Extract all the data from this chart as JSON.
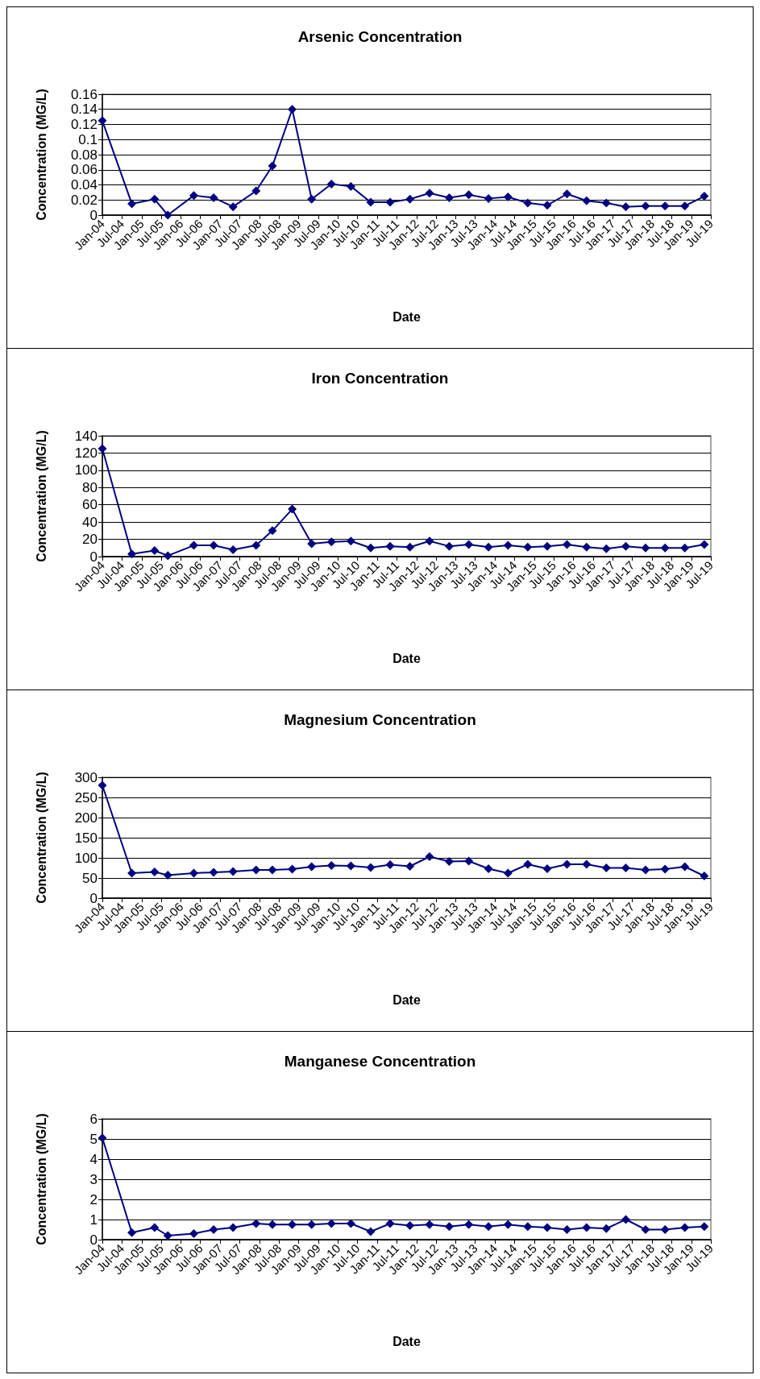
{
  "chart_data": [
    {
      "type": "line",
      "title": "Arsenic Concentration",
      "xlabel": "Date",
      "ylabel": "Concentration (MG/L)",
      "marker": "diamond",
      "line_style": "solid",
      "grid": "y",
      "x": [
        "2004-01",
        "2004-10",
        "2005-05",
        "2005-09",
        "2006-05",
        "2006-11",
        "2007-05",
        "2007-12",
        "2008-05",
        "2008-11",
        "2009-05",
        "2009-11",
        "2010-05",
        "2010-11",
        "2011-05",
        "2011-11",
        "2012-05",
        "2012-11",
        "2013-05",
        "2013-11",
        "2014-05",
        "2014-11",
        "2015-05",
        "2015-11",
        "2016-05",
        "2016-11",
        "2017-05",
        "2017-11",
        "2018-05",
        "2018-11",
        "2019-05"
      ],
      "series": [
        {
          "color": "#000080",
          "values": [
            0.125,
            0.015,
            0.021,
            0.0,
            0.026,
            0.023,
            0.011,
            0.032,
            0.065,
            0.14,
            0.021,
            0.041,
            0.038,
            0.017,
            0.017,
            0.021,
            0.029,
            0.023,
            0.027,
            0.022,
            0.024,
            0.016,
            0.013,
            0.028,
            0.019,
            0.016,
            0.011,
            0.012,
            0.012,
            0.012,
            0.025
          ]
        }
      ],
      "ylim": [
        0,
        0.16
      ],
      "yticks": [
        0,
        0.02,
        0.04,
        0.06,
        0.08,
        0.1,
        0.12,
        0.14,
        0.16
      ],
      "xlim": [
        "2004-01",
        "2019-07"
      ],
      "xticks": [
        {
          "value": "2004-01",
          "label": "Jan-04"
        },
        {
          "value": "2004-07",
          "label": "Jul-04"
        },
        {
          "value": "2005-01",
          "label": "Jan-05"
        },
        {
          "value": "2005-07",
          "label": "Jul-05"
        },
        {
          "value": "2006-01",
          "label": "Jan-06"
        },
        {
          "value": "2006-07",
          "label": "Jul-06"
        },
        {
          "value": "2007-01",
          "label": "Jan-07"
        },
        {
          "value": "2007-07",
          "label": "Jul-07"
        },
        {
          "value": "2008-01",
          "label": "Jan-08"
        },
        {
          "value": "2008-07",
          "label": "Jul-08"
        },
        {
          "value": "2009-01",
          "label": "Jan-09"
        },
        {
          "value": "2009-07",
          "label": "Jul-09"
        },
        {
          "value": "2010-01",
          "label": "Jan-10"
        },
        {
          "value": "2010-07",
          "label": "Jul-10"
        },
        {
          "value": "2011-01",
          "label": "Jan-11"
        },
        {
          "value": "2011-07",
          "label": "Jul-11"
        },
        {
          "value": "2012-01",
          "label": "Jan-12"
        },
        {
          "value": "2012-07",
          "label": "Jul-12"
        },
        {
          "value": "2013-01",
          "label": "Jan-13"
        },
        {
          "value": "2013-07",
          "label": "Jul-13"
        },
        {
          "value": "2014-01",
          "label": "Jan-14"
        },
        {
          "value": "2014-07",
          "label": "Jul-14"
        },
        {
          "value": "2015-01",
          "label": "Jan-15"
        },
        {
          "value": "2015-07",
          "label": "Jul-15"
        },
        {
          "value": "2016-01",
          "label": "Jan-16"
        },
        {
          "value": "2016-07",
          "label": "Jul-16"
        },
        {
          "value": "2017-01",
          "label": "Jan-17"
        },
        {
          "value": "2017-07",
          "label": "Jul-17"
        },
        {
          "value": "2018-01",
          "label": "Jan-18"
        },
        {
          "value": "2018-07",
          "label": "Jul-18"
        },
        {
          "value": "2019-01",
          "label": "Jan-19"
        },
        {
          "value": "2019-07",
          "label": "Jul-19"
        }
      ]
    },
    {
      "type": "line",
      "title": "Iron Concentration",
      "xlabel": "Date",
      "ylabel": "Concentration (MG/L)",
      "marker": "diamond",
      "line_style": "solid",
      "grid": "y",
      "x": [
        "2004-01",
        "2004-10",
        "2005-05",
        "2005-09",
        "2006-05",
        "2006-11",
        "2007-05",
        "2007-12",
        "2008-05",
        "2008-11",
        "2009-05",
        "2009-11",
        "2010-05",
        "2010-11",
        "2011-05",
        "2011-11",
        "2012-05",
        "2012-11",
        "2013-05",
        "2013-11",
        "2014-05",
        "2014-11",
        "2015-05",
        "2015-11",
        "2016-05",
        "2016-11",
        "2017-05",
        "2017-11",
        "2018-05",
        "2018-11",
        "2019-05"
      ],
      "series": [
        {
          "color": "#000080",
          "values": [
            125,
            3,
            7,
            1,
            13,
            13,
            8,
            13,
            30,
            55,
            15,
            17,
            18,
            10,
            12,
            11,
            18,
            12,
            14,
            11,
            13,
            11,
            12,
            14,
            11,
            9,
            12,
            10,
            10,
            10,
            14
          ]
        }
      ],
      "ylim": [
        0,
        140
      ],
      "yticks": [
        0,
        20,
        40,
        60,
        80,
        100,
        120,
        140
      ],
      "xlim": [
        "2004-01",
        "2019-07"
      ],
      "xticks": [
        {
          "value": "2004-01",
          "label": "Jan-04"
        },
        {
          "value": "2004-07",
          "label": "Jul-04"
        },
        {
          "value": "2005-01",
          "label": "Jan-05"
        },
        {
          "value": "2005-07",
          "label": "Jul-05"
        },
        {
          "value": "2006-01",
          "label": "Jan-06"
        },
        {
          "value": "2006-07",
          "label": "Jul-06"
        },
        {
          "value": "2007-01",
          "label": "Jan-07"
        },
        {
          "value": "2007-07",
          "label": "Jul-07"
        },
        {
          "value": "2008-01",
          "label": "Jan-08"
        },
        {
          "value": "2008-07",
          "label": "Jul-08"
        },
        {
          "value": "2009-01",
          "label": "Jan-09"
        },
        {
          "value": "2009-07",
          "label": "Jul-09"
        },
        {
          "value": "2010-01",
          "label": "Jan-10"
        },
        {
          "value": "2010-07",
          "label": "Jul-10"
        },
        {
          "value": "2011-01",
          "label": "Jan-11"
        },
        {
          "value": "2011-07",
          "label": "Jul-11"
        },
        {
          "value": "2012-01",
          "label": "Jan-12"
        },
        {
          "value": "2012-07",
          "label": "Jul-12"
        },
        {
          "value": "2013-01",
          "label": "Jan-13"
        },
        {
          "value": "2013-07",
          "label": "Jul-13"
        },
        {
          "value": "2014-01",
          "label": "Jan-14"
        },
        {
          "value": "2014-07",
          "label": "Jul-14"
        },
        {
          "value": "2015-01",
          "label": "Jan-15"
        },
        {
          "value": "2015-07",
          "label": "Jul-15"
        },
        {
          "value": "2016-01",
          "label": "Jan-16"
        },
        {
          "value": "2016-07",
          "label": "Jul-16"
        },
        {
          "value": "2017-01",
          "label": "Jan-17"
        },
        {
          "value": "2017-07",
          "label": "Jul-17"
        },
        {
          "value": "2018-01",
          "label": "Jan-18"
        },
        {
          "value": "2018-07",
          "label": "Jul-18"
        },
        {
          "value": "2019-01",
          "label": "Jan-19"
        },
        {
          "value": "2019-07",
          "label": "Jul-19"
        }
      ]
    },
    {
      "type": "line",
      "title": "Magnesium Concentration",
      "xlabel": "Date",
      "ylabel": "Concentration (MG/L)",
      "marker": "diamond",
      "line_style": "solid",
      "grid": "y",
      "x": [
        "2004-01",
        "2004-10",
        "2005-05",
        "2005-09",
        "2006-05",
        "2006-11",
        "2007-05",
        "2007-12",
        "2008-05",
        "2008-11",
        "2009-05",
        "2009-11",
        "2010-05",
        "2010-11",
        "2011-05",
        "2011-11",
        "2012-05",
        "2012-11",
        "2013-05",
        "2013-11",
        "2014-05",
        "2014-11",
        "2015-05",
        "2015-11",
        "2016-05",
        "2016-11",
        "2017-05",
        "2017-11",
        "2018-05",
        "2018-11",
        "2019-05"
      ],
      "series": [
        {
          "color": "#000080",
          "values": [
            280,
            62,
            65,
            57,
            62,
            64,
            66,
            70,
            70,
            72,
            78,
            81,
            80,
            76,
            83,
            79,
            103,
            91,
            92,
            73,
            62,
            84,
            73,
            84,
            84,
            75,
            75,
            70,
            72,
            78,
            55
          ]
        }
      ],
      "ylim": [
        0,
        300
      ],
      "yticks": [
        0,
        50,
        100,
        150,
        200,
        250,
        300
      ],
      "xlim": [
        "2004-01",
        "2019-07"
      ],
      "xticks": [
        {
          "value": "2004-01",
          "label": "Jan-04"
        },
        {
          "value": "2004-07",
          "label": "Jul-04"
        },
        {
          "value": "2005-01",
          "label": "Jan-05"
        },
        {
          "value": "2005-07",
          "label": "Jul-05"
        },
        {
          "value": "2006-01",
          "label": "Jan-06"
        },
        {
          "value": "2006-07",
          "label": "Jul-06"
        },
        {
          "value": "2007-01",
          "label": "Jan-07"
        },
        {
          "value": "2007-07",
          "label": "Jul-07"
        },
        {
          "value": "2008-01",
          "label": "Jan-08"
        },
        {
          "value": "2008-07",
          "label": "Jul-08"
        },
        {
          "value": "2009-01",
          "label": "Jan-09"
        },
        {
          "value": "2009-07",
          "label": "Jul-09"
        },
        {
          "value": "2010-01",
          "label": "Jan-10"
        },
        {
          "value": "2010-07",
          "label": "Jul-10"
        },
        {
          "value": "2011-01",
          "label": "Jan-11"
        },
        {
          "value": "2011-07",
          "label": "Jul-11"
        },
        {
          "value": "2012-01",
          "label": "Jan-12"
        },
        {
          "value": "2012-07",
          "label": "Jul-12"
        },
        {
          "value": "2013-01",
          "label": "Jan-13"
        },
        {
          "value": "2013-07",
          "label": "Jul-13"
        },
        {
          "value": "2014-01",
          "label": "Jan-14"
        },
        {
          "value": "2014-07",
          "label": "Jul-14"
        },
        {
          "value": "2015-01",
          "label": "Jan-15"
        },
        {
          "value": "2015-07",
          "label": "Jul-15"
        },
        {
          "value": "2016-01",
          "label": "Jan-16"
        },
        {
          "value": "2016-07",
          "label": "Jul-16"
        },
        {
          "value": "2017-01",
          "label": "Jan-17"
        },
        {
          "value": "2017-07",
          "label": "Jul-17"
        },
        {
          "value": "2018-01",
          "label": "Jan-18"
        },
        {
          "value": "2018-07",
          "label": "Jul-18"
        },
        {
          "value": "2019-01",
          "label": "Jan-19"
        },
        {
          "value": "2019-07",
          "label": "Jul-19"
        }
      ]
    },
    {
      "type": "line",
      "title": "Manganese Concentration",
      "xlabel": "Date",
      "ylabel": "Concentration (MG/L)",
      "marker": "diamond",
      "line_style": "solid",
      "grid": "y",
      "x": [
        "2004-01",
        "2004-10",
        "2005-05",
        "2005-09",
        "2006-05",
        "2006-11",
        "2007-05",
        "2007-12",
        "2008-05",
        "2008-11",
        "2009-05",
        "2009-11",
        "2010-05",
        "2010-11",
        "2011-05",
        "2011-11",
        "2012-05",
        "2012-11",
        "2013-05",
        "2013-11",
        "2014-05",
        "2014-11",
        "2015-05",
        "2015-11",
        "2016-05",
        "2016-11",
        "2017-05",
        "2017-11",
        "2018-05",
        "2018-11",
        "2019-05"
      ],
      "series": [
        {
          "color": "#000080",
          "values": [
            5.05,
            0.35,
            0.6,
            0.2,
            0.3,
            0.5,
            0.6,
            0.8,
            0.75,
            0.75,
            0.75,
            0.8,
            0.8,
            0.4,
            0.8,
            0.7,
            0.75,
            0.65,
            0.75,
            0.65,
            0.75,
            0.65,
            0.6,
            0.5,
            0.6,
            0.55,
            1.0,
            0.5,
            0.5,
            0.6,
            0.65
          ]
        }
      ],
      "ylim": [
        0,
        6
      ],
      "yticks": [
        0,
        1,
        2,
        3,
        4,
        5,
        6
      ],
      "xlim": [
        "2004-01",
        "2019-07"
      ],
      "xticks": [
        {
          "value": "2004-01",
          "label": "Jan-04"
        },
        {
          "value": "2004-07",
          "label": "Jul-04"
        },
        {
          "value": "2005-01",
          "label": "Jan-05"
        },
        {
          "value": "2005-07",
          "label": "Jul-05"
        },
        {
          "value": "2006-01",
          "label": "Jan-06"
        },
        {
          "value": "2006-07",
          "label": "Jul-06"
        },
        {
          "value": "2007-01",
          "label": "Jan-07"
        },
        {
          "value": "2007-07",
          "label": "Jul-07"
        },
        {
          "value": "2008-01",
          "label": "Jan-08"
        },
        {
          "value": "2008-07",
          "label": "Jul-08"
        },
        {
          "value": "2009-01",
          "label": "Jan-09"
        },
        {
          "value": "2009-07",
          "label": "Jul-09"
        },
        {
          "value": "2010-01",
          "label": "Jan-10"
        },
        {
          "value": "2010-07",
          "label": "Jul-10"
        },
        {
          "value": "2011-01",
          "label": "Jan-11"
        },
        {
          "value": "2011-07",
          "label": "Jul-11"
        },
        {
          "value": "2012-01",
          "label": "Jan-12"
        },
        {
          "value": "2012-07",
          "label": "Jul-12"
        },
        {
          "value": "2013-01",
          "label": "Jan-13"
        },
        {
          "value": "2013-07",
          "label": "Jul-13"
        },
        {
          "value": "2014-01",
          "label": "Jan-14"
        },
        {
          "value": "2014-07",
          "label": "Jul-14"
        },
        {
          "value": "2015-01",
          "label": "Jan-15"
        },
        {
          "value": "2015-07",
          "label": "Jul-15"
        },
        {
          "value": "2016-01",
          "label": "Jan-16"
        },
        {
          "value": "2016-07",
          "label": "Jul-16"
        },
        {
          "value": "2017-01",
          "label": "Jan-17"
        },
        {
          "value": "2017-07",
          "label": "Jul-17"
        },
        {
          "value": "2018-01",
          "label": "Jan-18"
        },
        {
          "value": "2018-07",
          "label": "Jul-18"
        },
        {
          "value": "2019-01",
          "label": "Jan-19"
        },
        {
          "value": "2019-07",
          "label": "Jul-19"
        }
      ]
    }
  ]
}
